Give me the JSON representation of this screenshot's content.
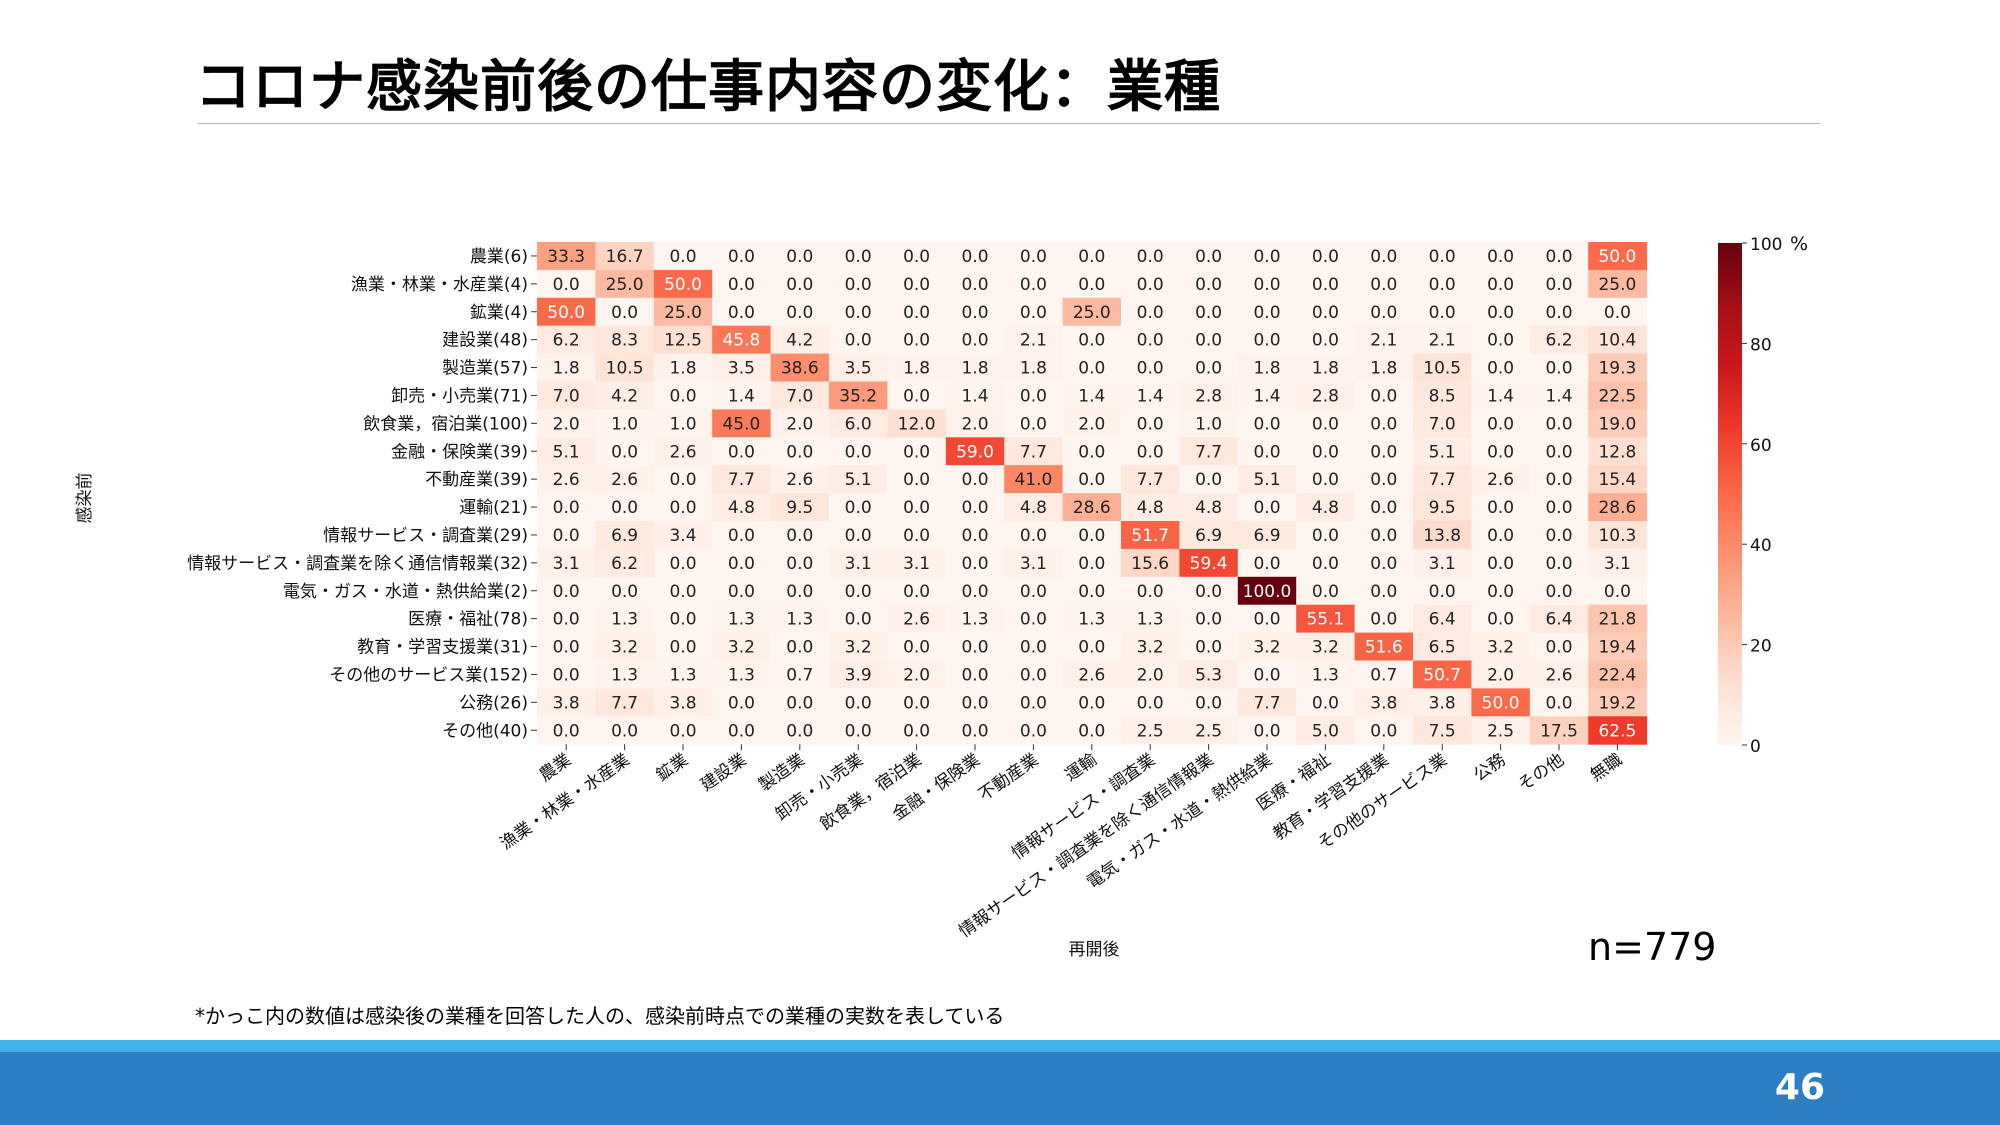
{
  "slide": {
    "title": "コロナ感染前後の仕事内容の変化：業種",
    "n_label": "n=779",
    "footnote": "*かっこ内の数値は感染後の業種を回答した人の、感染前時点での業種の実数を表している",
    "page_number": "46"
  },
  "chart_data": {
    "type": "heatmap",
    "xlabel": "再開後",
    "ylabel": "感染前",
    "rows": [
      "農業(6)",
      "漁業・林業・水産業(4)",
      "鉱業(4)",
      "建設業(48)",
      "製造業(57)",
      "卸売・小売業(71)",
      "飲食業，宿泊業(100)",
      "金融・保険業(39)",
      "不動産業(39)",
      "運輸(21)",
      "情報サービス・調査業(29)",
      "情報サービス・調査業を除く通信情報業(32)",
      "電気・ガス・水道・熱供給業(2)",
      "医療・福祉(78)",
      "教育・学習支援業(31)",
      "その他のサービス業(152)",
      "公務(26)",
      "その他(40)"
    ],
    "columns": [
      "農業",
      "漁業・林業・水産業",
      "鉱業",
      "建設業",
      "製造業",
      "卸売・小売業",
      "飲食業，宿泊業",
      "金融・保険業",
      "不動産業",
      "運輸",
      "情報サービス・調査業",
      "情報サービス・調査業を除く通信情報業",
      "電気・ガス・水道・熱供給業",
      "医療・福祉",
      "教育・学習支援業",
      "その他のサービス業",
      "公務",
      "その他",
      "無職"
    ],
    "values": [
      [
        33.3,
        16.7,
        0.0,
        0.0,
        0.0,
        0.0,
        0.0,
        0.0,
        0.0,
        0.0,
        0.0,
        0.0,
        0.0,
        0.0,
        0.0,
        0.0,
        0.0,
        0.0,
        50.0
      ],
      [
        0.0,
        25.0,
        50.0,
        0.0,
        0.0,
        0.0,
        0.0,
        0.0,
        0.0,
        0.0,
        0.0,
        0.0,
        0.0,
        0.0,
        0.0,
        0.0,
        0.0,
        0.0,
        25.0
      ],
      [
        50.0,
        0.0,
        25.0,
        0.0,
        0.0,
        0.0,
        0.0,
        0.0,
        0.0,
        25.0,
        0.0,
        0.0,
        0.0,
        0.0,
        0.0,
        0.0,
        0.0,
        0.0,
        0.0
      ],
      [
        6.2,
        8.3,
        12.5,
        45.8,
        4.2,
        0.0,
        0.0,
        0.0,
        2.1,
        0.0,
        0.0,
        0.0,
        0.0,
        0.0,
        2.1,
        2.1,
        0.0,
        6.2,
        10.4
      ],
      [
        1.8,
        10.5,
        1.8,
        3.5,
        38.6,
        3.5,
        1.8,
        1.8,
        1.8,
        0.0,
        0.0,
        0.0,
        1.8,
        1.8,
        1.8,
        10.5,
        0.0,
        0.0,
        19.3
      ],
      [
        7.0,
        4.2,
        0.0,
        1.4,
        7.0,
        35.2,
        0.0,
        1.4,
        0.0,
        1.4,
        1.4,
        2.8,
        1.4,
        2.8,
        0.0,
        8.5,
        1.4,
        1.4,
        22.5
      ],
      [
        2.0,
        1.0,
        1.0,
        45.0,
        2.0,
        6.0,
        12.0,
        2.0,
        0.0,
        2.0,
        0.0,
        1.0,
        0.0,
        0.0,
        0.0,
        7.0,
        0.0,
        0.0,
        19.0
      ],
      [
        5.1,
        0.0,
        2.6,
        0.0,
        0.0,
        0.0,
        0.0,
        59.0,
        7.7,
        0.0,
        0.0,
        7.7,
        0.0,
        0.0,
        0.0,
        5.1,
        0.0,
        0.0,
        12.8
      ],
      [
        2.6,
        2.6,
        0.0,
        7.7,
        2.6,
        5.1,
        0.0,
        0.0,
        41.0,
        0.0,
        7.7,
        0.0,
        5.1,
        0.0,
        0.0,
        7.7,
        2.6,
        0.0,
        15.4
      ],
      [
        0.0,
        0.0,
        0.0,
        4.8,
        9.5,
        0.0,
        0.0,
        0.0,
        4.8,
        28.6,
        4.8,
        4.8,
        0.0,
        4.8,
        0.0,
        9.5,
        0.0,
        0.0,
        28.6
      ],
      [
        0.0,
        6.9,
        3.4,
        0.0,
        0.0,
        0.0,
        0.0,
        0.0,
        0.0,
        0.0,
        51.7,
        6.9,
        6.9,
        0.0,
        0.0,
        13.8,
        0.0,
        0.0,
        10.3
      ],
      [
        3.1,
        6.2,
        0.0,
        0.0,
        0.0,
        3.1,
        3.1,
        0.0,
        3.1,
        0.0,
        15.6,
        59.4,
        0.0,
        0.0,
        0.0,
        3.1,
        0.0,
        0.0,
        3.1
      ],
      [
        0.0,
        0.0,
        0.0,
        0.0,
        0.0,
        0.0,
        0.0,
        0.0,
        0.0,
        0.0,
        0.0,
        0.0,
        100.0,
        0.0,
        0.0,
        0.0,
        0.0,
        0.0,
        0.0
      ],
      [
        0.0,
        1.3,
        0.0,
        1.3,
        1.3,
        0.0,
        2.6,
        1.3,
        0.0,
        1.3,
        1.3,
        0.0,
        0.0,
        55.1,
        0.0,
        6.4,
        0.0,
        6.4,
        21.8
      ],
      [
        0.0,
        3.2,
        0.0,
        3.2,
        0.0,
        3.2,
        0.0,
        0.0,
        0.0,
        0.0,
        3.2,
        0.0,
        3.2,
        3.2,
        51.6,
        6.5,
        3.2,
        0.0,
        19.4
      ],
      [
        0.0,
        1.3,
        1.3,
        1.3,
        0.7,
        3.9,
        2.0,
        0.0,
        0.0,
        2.6,
        2.0,
        5.3,
        0.0,
        1.3,
        0.7,
        50.7,
        2.0,
        2.6,
        22.4
      ],
      [
        3.8,
        7.7,
        3.8,
        0.0,
        0.0,
        0.0,
        0.0,
        0.0,
        0.0,
        0.0,
        0.0,
        0.0,
        7.7,
        0.0,
        3.8,
        3.8,
        50.0,
        0.0,
        19.2
      ],
      [
        0.0,
        0.0,
        0.0,
        0.0,
        0.0,
        0.0,
        0.0,
        0.0,
        0.0,
        0.0,
        2.5,
        2.5,
        0.0,
        5.0,
        0.0,
        7.5,
        2.5,
        17.5,
        62.5
      ]
    ],
    "colorbar": {
      "range": [
        0,
        100
      ],
      "ticks": [
        "0",
        "20",
        "40",
        "60",
        "80",
        "100"
      ],
      "unit": "%"
    },
    "colormap": [
      "#fff5f0",
      "#fee0d2",
      "#fcbba1",
      "#fc9272",
      "#fb6a4a",
      "#ef3b2c",
      "#cb181d",
      "#a50f15",
      "#67000d"
    ]
  }
}
